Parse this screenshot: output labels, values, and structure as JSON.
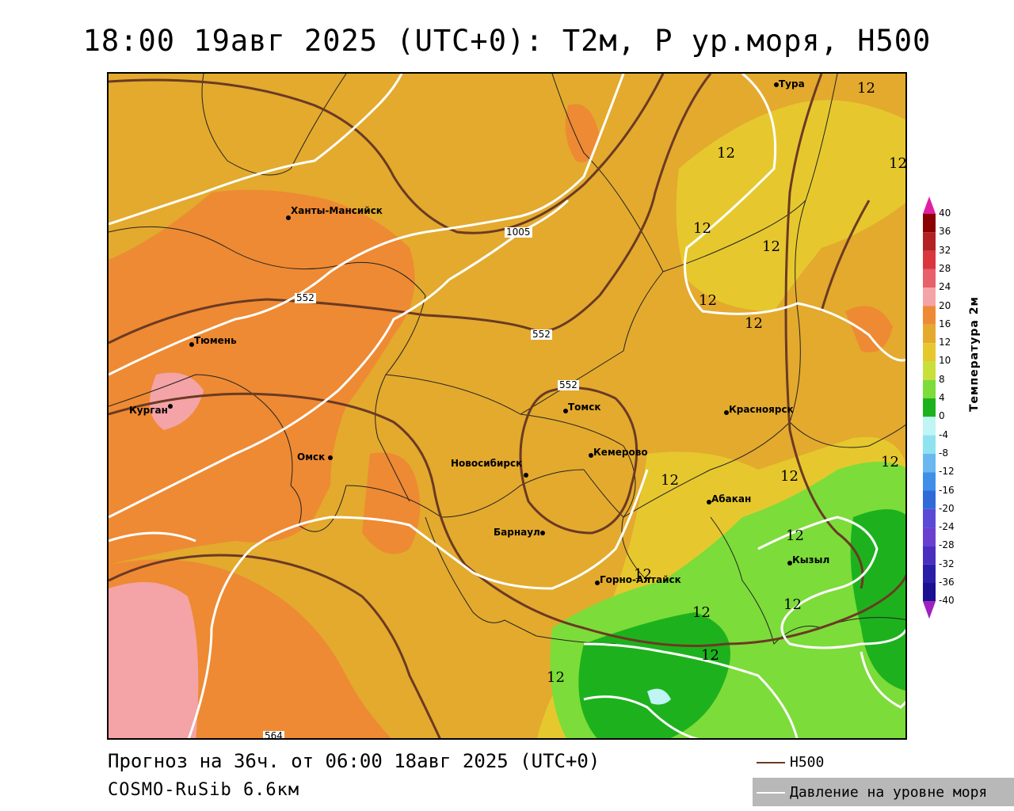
{
  "title": "18:00 19авг 2025 (UTC+0): T2м, P ур.моря, H500",
  "footer": {
    "forecast": "Прогноз на 36ч. от 06:00 18авг 2025 (UTC+0)",
    "model": "COSMO-RuSib 6.6км"
  },
  "map_key": {
    "h500_label": "H500",
    "h500_color": "#6b3a24",
    "pressure_label": "Давление на уровне моря",
    "pressure_color": "#ffffff"
  },
  "colorbar": {
    "title": "Температура 2м",
    "ticks": [
      "40",
      "36",
      "32",
      "28",
      "24",
      "20",
      "16",
      "12",
      "10",
      "8",
      "4",
      "0",
      "-4",
      "-8",
      "-12",
      "-16",
      "-20",
      "-24",
      "-28",
      "-32",
      "-36",
      "-40"
    ],
    "colors": [
      "#8b0000",
      "#b22222",
      "#d9363e",
      "#e8606a",
      "#f4a3a6",
      "#ee8a33",
      "#e3aa2d",
      "#e6c82e",
      "#c9e03a",
      "#7cdc3a",
      "#1db21d",
      "#bff5f5",
      "#8fe2f0",
      "#6ab8f0",
      "#3f8fe8",
      "#2f6ad9",
      "#5a4ad6",
      "#6a3fd0",
      "#4a2ec0",
      "#2a1ea8",
      "#1a1090"
    ],
    "top_color": "#e020a0",
    "bottom_color": "#a020c0"
  },
  "cities": [
    {
      "name": "Тура"
    },
    {
      "name": "Ханты-Мансийск"
    },
    {
      "name": "Тюмень"
    },
    {
      "name": "Курган"
    },
    {
      "name": "Омск"
    },
    {
      "name": "Томск"
    },
    {
      "name": "Кемерово"
    },
    {
      "name": "Новосибирск"
    },
    {
      "name": "Красноярск"
    },
    {
      "name": "Абакан"
    },
    {
      "name": "Барнаул"
    },
    {
      "name": "Кызыл"
    },
    {
      "name": "Горно-Алтайск"
    }
  ],
  "contour_labels": {
    "pressure": [
      "1005"
    ],
    "h500": [
      "552",
      "552",
      "552",
      "564"
    ]
  },
  "isotherm_labels": [
    "12",
    "12",
    "12",
    "12",
    "12",
    "12",
    "12",
    "12",
    "12",
    "12",
    "12",
    "12",
    "12",
    "12",
    "12",
    "12"
  ]
}
